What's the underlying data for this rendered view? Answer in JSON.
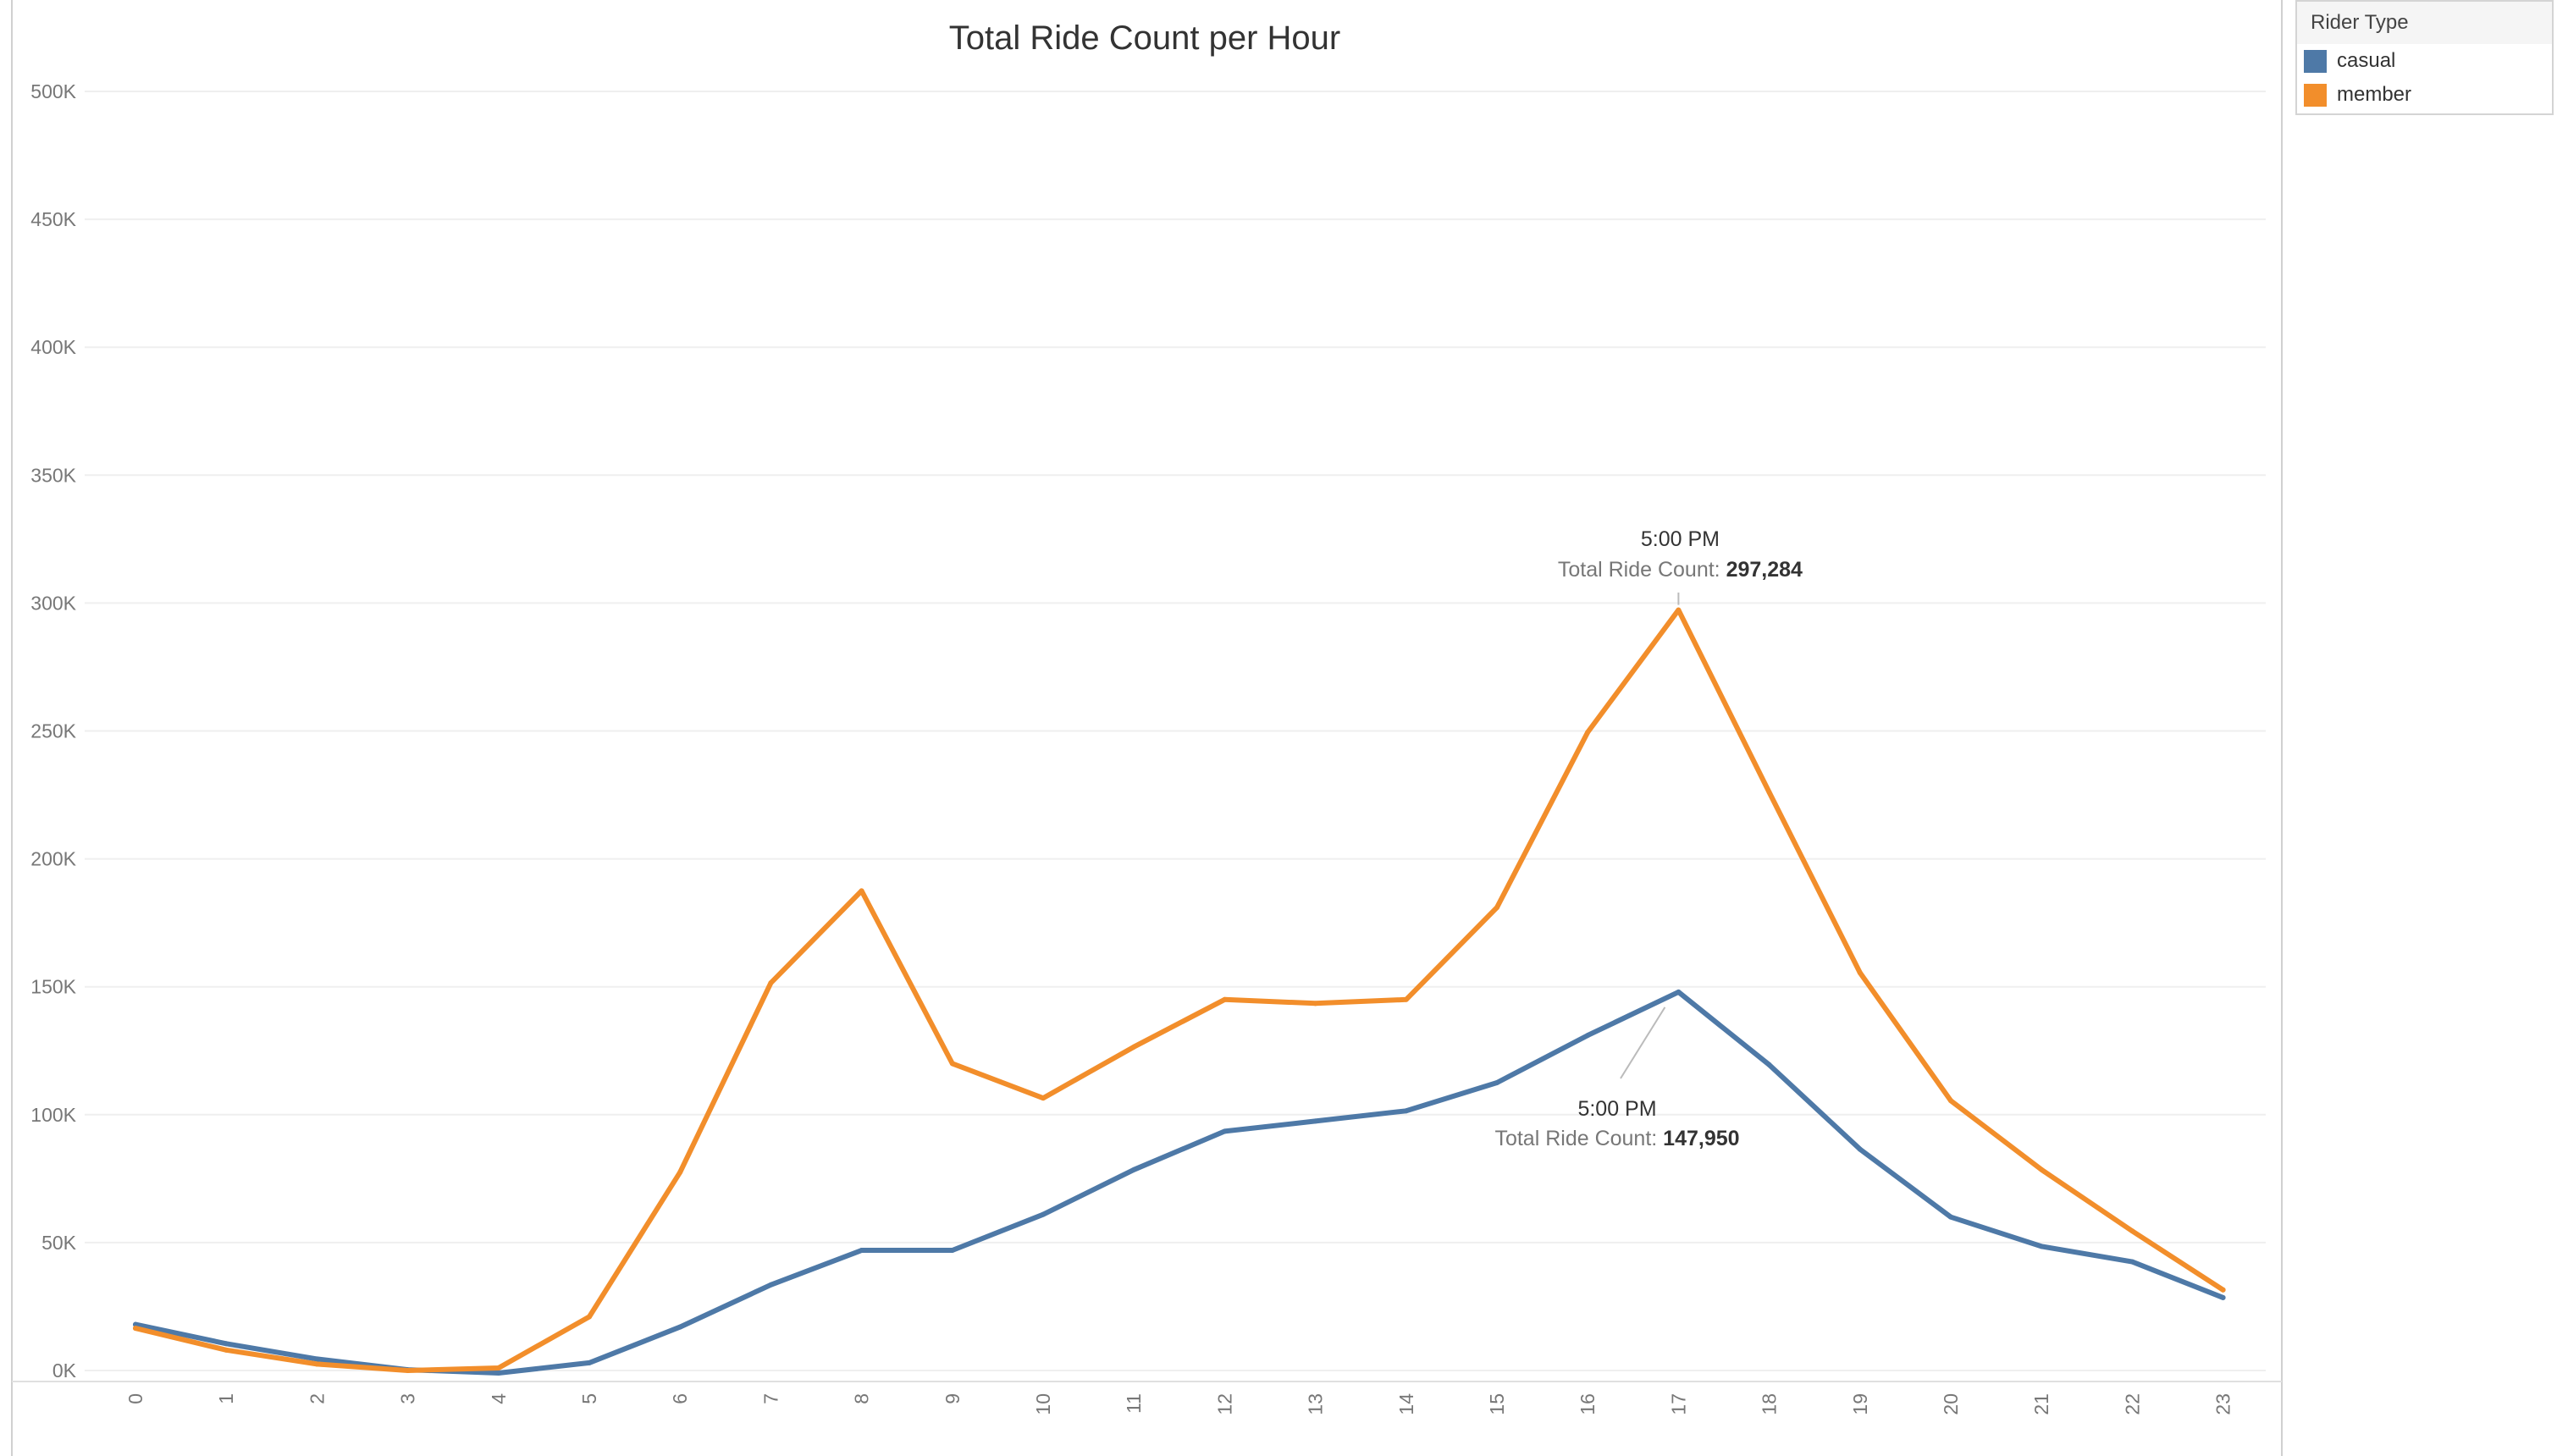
{
  "chart_data": {
    "type": "line",
    "title": "Total Ride Count per Hour",
    "xlabel": "",
    "ylabel": "",
    "x": [
      0,
      1,
      2,
      3,
      4,
      5,
      6,
      7,
      8,
      9,
      10,
      11,
      12,
      13,
      14,
      15,
      16,
      17,
      18,
      19,
      20,
      21,
      22,
      23
    ],
    "x_tick_labels": [
      "0",
      "1",
      "2",
      "3",
      "4",
      "5",
      "6",
      "7",
      "8",
      "9",
      "10",
      "11",
      "12",
      "13",
      "14",
      "15",
      "16",
      "17",
      "18",
      "19",
      "20",
      "21",
      "22",
      "23"
    ],
    "ylim": [
      0,
      500000
    ],
    "y_ticks": [
      0,
      50000,
      100000,
      150000,
      200000,
      250000,
      300000,
      350000,
      400000,
      450000,
      500000
    ],
    "y_tick_labels": [
      "0K",
      "50K",
      "100K",
      "150K",
      "200K",
      "250K",
      "300K",
      "350K",
      "400K",
      "450K",
      "500K"
    ],
    "grid": true,
    "legend": {
      "title": "Rider Type",
      "placement": "top-right"
    },
    "series": [
      {
        "name": "casual",
        "color": "#4e79a7",
        "values": [
          18000,
          10500,
          4500,
          300,
          -1000,
          3000,
          17000,
          33500,
          47000,
          47000,
          61000,
          78500,
          93500,
          97500,
          101500,
          112500,
          131000,
          147950,
          119500,
          86500,
          60000,
          48500,
          42500,
          28500
        ]
      },
      {
        "name": "member",
        "color": "#f28e2b",
        "values": [
          16500,
          8000,
          2500,
          0,
          1000,
          21000,
          77500,
          151500,
          187500,
          120000,
          106500,
          126500,
          145000,
          143500,
          145000,
          181000,
          249500,
          297284,
          226000,
          155500,
          105500,
          78500,
          54500,
          31500
        ]
      }
    ],
    "annotations": [
      {
        "series": "member",
        "x": 17,
        "time_label": "5:00 PM",
        "label": "Total Ride Count:",
        "value": "297,284"
      },
      {
        "series": "casual",
        "x": 17,
        "time_label": "5:00 PM",
        "label": "Total Ride Count:",
        "value": "147,950"
      }
    ]
  }
}
